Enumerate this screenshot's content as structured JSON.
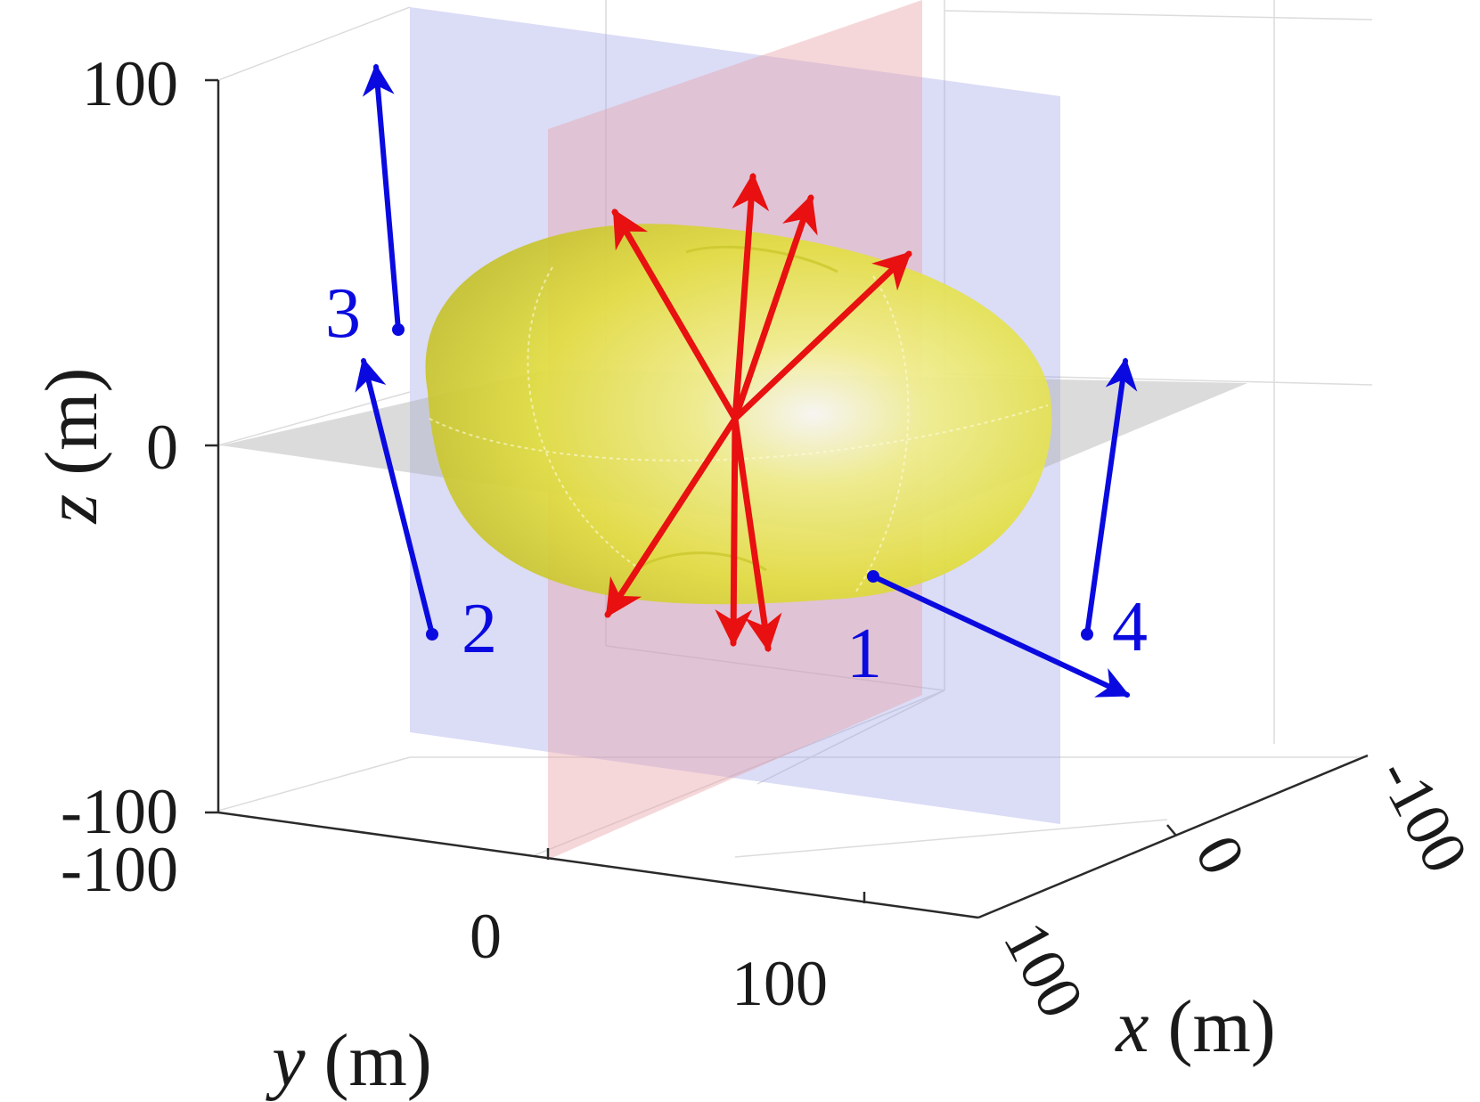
{
  "chart_data": {
    "type": "3d-surface-with-vectors",
    "xlabel": {
      "var": "x",
      "unit": " (m)"
    },
    "ylabel": {
      "var": "y",
      "unit": " (m)"
    },
    "zlabel": {
      "var": "z",
      "unit": " (m)"
    },
    "xlim": [
      -100,
      100
    ],
    "ylim": [
      -100,
      100
    ],
    "zlim": [
      -100,
      100
    ],
    "x_ticks": [
      "-100",
      "0",
      "100"
    ],
    "y_ticks": [
      "-100",
      "0",
      "100"
    ],
    "z_ticks": [
      "100",
      "0",
      "-100"
    ],
    "grid": true,
    "planes": [
      {
        "name": "x = 0",
        "color": "#e8a0a8"
      },
      {
        "name": "y = 0",
        "color": "#a0a4e8"
      },
      {
        "name": "z = 0",
        "color": "#b0b0b0"
      }
    ],
    "surface": {
      "shape": "ellipsoid",
      "color": "#e8e040"
    },
    "vector_colors": {
      "inner": "#e81010",
      "outer": "#0a0ae0"
    },
    "annotations": [
      "1",
      "2",
      "3",
      "4"
    ]
  }
}
